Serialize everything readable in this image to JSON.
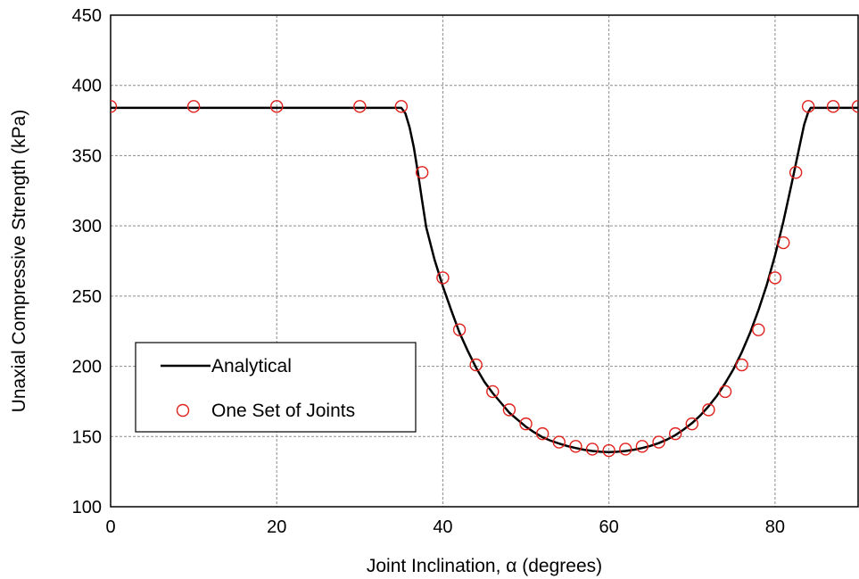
{
  "chart_data": {
    "type": "scatter",
    "title": "",
    "xlabel": "Joint Inclination, α (degrees)",
    "ylabel": "Unaxial Compressive Strength (kPa)",
    "xlim": [
      0,
      90
    ],
    "ylim": [
      100,
      450
    ],
    "x_ticks": [
      "0",
      "20",
      "40",
      "60",
      "80"
    ],
    "y_ticks": [
      "100",
      "150",
      "200",
      "250",
      "300",
      "350",
      "400",
      "450"
    ],
    "x_tick_values": [
      0,
      20,
      40,
      60,
      80
    ],
    "y_tick_values": [
      100,
      150,
      200,
      250,
      300,
      350,
      400,
      450
    ],
    "grid": true,
    "legend_position": "left",
    "series": [
      {
        "name": "Analytical",
        "kind": "line",
        "color": "#000000",
        "x": [
          0,
          35,
          35.5,
          36,
          36.5,
          37,
          37.5,
          38,
          39,
          40,
          41,
          42,
          43,
          44,
          45,
          46,
          47,
          48,
          49,
          50,
          51,
          52,
          53,
          54,
          55,
          56,
          57,
          58,
          59,
          60,
          61,
          62,
          63,
          64,
          65,
          66,
          67,
          68,
          69,
          70,
          71,
          72,
          73,
          74,
          75,
          76,
          77,
          78,
          79,
          80,
          81,
          82,
          83,
          83.5,
          84,
          84.3,
          90
        ],
        "y": [
          384,
          384,
          380,
          370,
          356,
          338,
          318,
          299,
          276,
          257,
          240,
          224,
          211,
          199,
          189,
          181,
          174,
          167,
          162,
          157,
          153,
          149.5,
          147,
          145,
          143.2,
          141.8,
          140.6,
          139.7,
          139.1,
          138.9,
          139.1,
          139.7,
          140.6,
          141.8,
          143.3,
          145.3,
          147.8,
          151,
          155,
          159.5,
          165,
          171.5,
          179,
          188,
          198,
          210,
          224,
          240,
          258,
          279,
          303,
          330,
          358,
          372,
          381,
          384,
          384
        ]
      },
      {
        "name": "One Set of Joints",
        "kind": "marker",
        "color": "#e0201b",
        "x": [
          0,
          10,
          20,
          30,
          35,
          37.5,
          40,
          42,
          44,
          46,
          48,
          50,
          52,
          54,
          56,
          58,
          60,
          62,
          64,
          66,
          68,
          70,
          72,
          74,
          76,
          78,
          80,
          81,
          82.5,
          84,
          87,
          90
        ],
        "y": [
          385,
          385,
          385,
          385,
          385,
          338,
          263,
          226,
          201,
          182,
          169,
          159,
          152,
          146,
          143,
          141,
          140,
          141,
          143,
          146,
          152,
          159,
          169,
          182,
          201,
          226,
          263,
          288,
          338,
          385,
          385,
          385
        ]
      }
    ]
  }
}
